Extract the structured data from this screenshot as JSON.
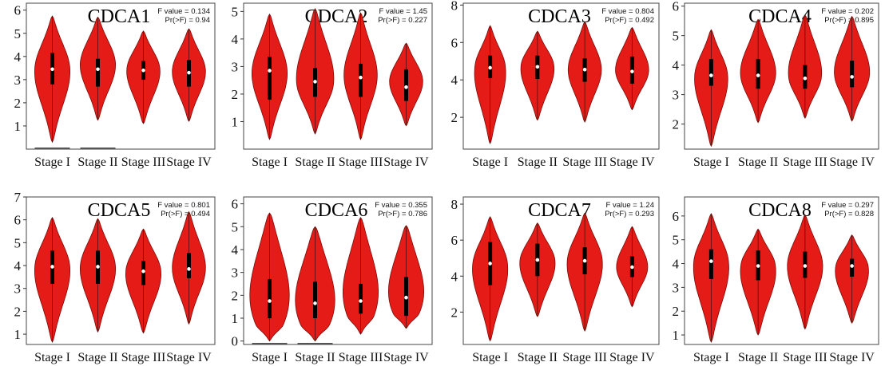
{
  "chart_data": [
    {
      "type": "violin",
      "title": "CDCA1",
      "stats": [
        "F value = 0.134",
        "Pr(>F) = 0.94"
      ],
      "categories": [
        "Stage I",
        "Stage II",
        "Stage III",
        "Stage IV"
      ],
      "ylim": [
        0,
        6.3
      ],
      "yticks": [
        1,
        2,
        3,
        4,
        5,
        6
      ],
      "violins": [
        {
          "min": 0.3,
          "max": 5.75,
          "q1": 2.8,
          "median": 3.45,
          "q3": 4.15,
          "mode": 3.5,
          "width": 0.85
        },
        {
          "min": 1.25,
          "max": 5.7,
          "q1": 2.7,
          "median": 3.45,
          "q3": 3.9,
          "mode": 3.7,
          "width": 0.85
        },
        {
          "min": 1.1,
          "max": 5.1,
          "q1": 3.0,
          "median": 3.4,
          "q3": 3.8,
          "mode": 3.5,
          "width": 0.8
        },
        {
          "min": 1.2,
          "max": 5.2,
          "q1": 2.7,
          "median": 3.3,
          "q3": 3.85,
          "mode": 3.4,
          "width": 0.8
        }
      ],
      "zero_bars": [
        0,
        1
      ],
      "color": "#e41b17"
    },
    {
      "type": "violin",
      "title": "CDCA2",
      "stats": [
        "F value = 1.45",
        "Pr(>F) = 0.227"
      ],
      "categories": [
        "Stage I",
        "Stage II",
        "Stage III",
        "Stage IV"
      ],
      "ylim": [
        0,
        5.3
      ],
      "yticks": [
        1,
        2,
        3,
        4,
        5
      ],
      "violins": [
        {
          "min": 0.35,
          "max": 4.9,
          "q1": 1.8,
          "median": 2.85,
          "q3": 3.35,
          "mode": 2.8,
          "width": 0.85
        },
        {
          "min": 0.55,
          "max": 5.1,
          "q1": 1.9,
          "median": 2.45,
          "q3": 2.95,
          "mode": 2.4,
          "width": 0.9
        },
        {
          "min": 0.35,
          "max": 4.95,
          "q1": 1.9,
          "median": 2.6,
          "q3": 3.1,
          "mode": 2.7,
          "width": 0.8
        },
        {
          "min": 0.85,
          "max": 3.85,
          "q1": 1.75,
          "median": 2.25,
          "q3": 2.9,
          "mode": 2.5,
          "width": 0.8
        }
      ],
      "zero_bars": [],
      "color": "#e41b17"
    },
    {
      "type": "violin",
      "title": "CDCA3",
      "stats": [
        "F value = 0.804",
        "Pr(>F) = 0.492"
      ],
      "categories": [
        "Stage I",
        "Stage II",
        "Stage III",
        "Stage IV"
      ],
      "ylim": [
        0.3,
        8.1
      ],
      "yticks": [
        2,
        4,
        6,
        8
      ],
      "violins": [
        {
          "min": 0.6,
          "max": 6.9,
          "q1": 4.1,
          "median": 4.65,
          "q3": 5.3,
          "mode": 4.8,
          "width": 0.75
        },
        {
          "min": 1.85,
          "max": 6.6,
          "q1": 4.05,
          "median": 4.7,
          "q3": 5.3,
          "mode": 4.8,
          "width": 0.8
        },
        {
          "min": 1.75,
          "max": 7.1,
          "q1": 3.9,
          "median": 4.55,
          "q3": 5.15,
          "mode": 4.6,
          "width": 0.8
        },
        {
          "min": 2.4,
          "max": 6.8,
          "q1": 3.8,
          "median": 4.45,
          "q3": 5.25,
          "mode": 4.5,
          "width": 0.8
        }
      ],
      "zero_bars": [],
      "color": "#e41b17"
    },
    {
      "type": "violin",
      "title": "CDCA4",
      "stats": [
        "F value = 0.202",
        "Pr(>F) = 0.895"
      ],
      "categories": [
        "Stage I",
        "Stage II",
        "Stage III",
        "Stage IV"
      ],
      "ylim": [
        1.15,
        6.1
      ],
      "yticks": [
        2,
        3,
        4,
        5,
        6
      ],
      "violins": [
        {
          "min": 1.25,
          "max": 5.2,
          "q1": 3.3,
          "median": 3.65,
          "q3": 4.2,
          "mode": 3.7,
          "width": 0.8
        },
        {
          "min": 2.05,
          "max": 5.55,
          "q1": 3.2,
          "median": 3.65,
          "q3": 4.2,
          "mode": 3.7,
          "width": 0.85
        },
        {
          "min": 2.2,
          "max": 5.7,
          "q1": 3.2,
          "median": 3.55,
          "q3": 4.0,
          "mode": 3.6,
          "width": 0.8
        },
        {
          "min": 2.1,
          "max": 5.65,
          "q1": 3.25,
          "median": 3.6,
          "q3": 4.15,
          "mode": 3.7,
          "width": 0.85
        }
      ],
      "zero_bars": [],
      "color": "#e41b17"
    },
    {
      "type": "violin",
      "title": "CDCA5",
      "stats": [
        "F value = 0.801",
        "Pr(>F) = 0.494"
      ],
      "categories": [
        "Stage I",
        "Stage II",
        "Stage III",
        "Stage IV"
      ],
      "ylim": [
        0.55,
        7.0
      ],
      "yticks": [
        1,
        2,
        3,
        4,
        5,
        6,
        7
      ],
      "violins": [
        {
          "min": 0.65,
          "max": 6.1,
          "q1": 3.2,
          "median": 3.95,
          "q3": 4.65,
          "mode": 4.0,
          "width": 0.85
        },
        {
          "min": 1.1,
          "max": 6.05,
          "q1": 3.2,
          "median": 3.95,
          "q3": 4.65,
          "mode": 4.0,
          "width": 0.85
        },
        {
          "min": 1.05,
          "max": 5.6,
          "q1": 3.15,
          "median": 3.75,
          "q3": 4.2,
          "mode": 3.8,
          "width": 0.85
        },
        {
          "min": 1.45,
          "max": 6.35,
          "q1": 3.45,
          "median": 3.85,
          "q3": 4.55,
          "mode": 3.9,
          "width": 0.8
        }
      ],
      "zero_bars": [],
      "color": "#e41b17"
    },
    {
      "type": "violin",
      "title": "CDCA6",
      "stats": [
        "F value = 0.355",
        "Pr(>F) = 0.786"
      ],
      "categories": [
        "Stage I",
        "Stage II",
        "Stage III",
        "Stage IV"
      ],
      "ylim": [
        -0.15,
        6.3
      ],
      "yticks": [
        0,
        1,
        2,
        3,
        4,
        5,
        6
      ],
      "violins": [
        {
          "min": 0.0,
          "max": 5.6,
          "q1": 1.0,
          "median": 1.75,
          "q3": 2.7,
          "mode": 0.7,
          "width": 0.95
        },
        {
          "min": 0.0,
          "max": 5.0,
          "q1": 1.0,
          "median": 1.65,
          "q3": 2.6,
          "mode": 0.7,
          "width": 0.95
        },
        {
          "min": 0.3,
          "max": 5.4,
          "q1": 1.2,
          "median": 1.75,
          "q3": 2.5,
          "mode": 1.1,
          "width": 0.85
        },
        {
          "min": 0.55,
          "max": 5.05,
          "q1": 1.1,
          "median": 1.9,
          "q3": 2.8,
          "mode": 1.2,
          "width": 0.85
        }
      ],
      "zero_bars": [
        0,
        1
      ],
      "color": "#e41b17"
    },
    {
      "type": "violin",
      "title": "CDCA7",
      "stats": [
        "F value = 1.24",
        "Pr(>F) = 0.293"
      ],
      "categories": [
        "Stage I",
        "Stage II",
        "Stage III",
        "Stage IV"
      ],
      "ylim": [
        0.2,
        8.4
      ],
      "yticks": [
        2,
        4,
        6,
        8
      ],
      "violins": [
        {
          "min": 0.4,
          "max": 7.3,
          "q1": 3.5,
          "median": 4.7,
          "q3": 5.9,
          "mode": 4.7,
          "width": 0.85
        },
        {
          "min": 1.75,
          "max": 6.95,
          "q1": 4.0,
          "median": 4.9,
          "q3": 5.8,
          "mode": 4.9,
          "width": 0.85
        },
        {
          "min": 0.95,
          "max": 7.5,
          "q1": 4.1,
          "median": 4.85,
          "q3": 5.6,
          "mode": 4.9,
          "width": 0.85
        },
        {
          "min": 2.3,
          "max": 6.75,
          "q1": 3.95,
          "median": 4.5,
          "q3": 5.1,
          "mode": 4.5,
          "width": 0.75
        }
      ],
      "zero_bars": [],
      "color": "#e41b17"
    },
    {
      "type": "violin",
      "title": "CDCA8",
      "stats": [
        "F value = 0.297",
        "Pr(>F) = 0.828"
      ],
      "categories": [
        "Stage I",
        "Stage II",
        "Stage III",
        "Stage IV"
      ],
      "ylim": [
        0.6,
        6.8
      ],
      "yticks": [
        1,
        2,
        3,
        4,
        5,
        6
      ],
      "violins": [
        {
          "min": 0.7,
          "max": 6.1,
          "q1": 3.35,
          "median": 4.1,
          "q3": 4.6,
          "mode": 4.1,
          "width": 0.85
        },
        {
          "min": 1.0,
          "max": 5.45,
          "q1": 3.3,
          "median": 3.9,
          "q3": 4.55,
          "mode": 4.0,
          "width": 0.85
        },
        {
          "min": 1.25,
          "max": 6.05,
          "q1": 3.4,
          "median": 3.9,
          "q3": 4.5,
          "mode": 4.0,
          "width": 0.85
        },
        {
          "min": 1.5,
          "max": 5.2,
          "q1": 3.45,
          "median": 3.9,
          "q3": 4.2,
          "mode": 3.9,
          "width": 0.8
        }
      ],
      "zero_bars": [],
      "color": "#e41b17"
    }
  ]
}
